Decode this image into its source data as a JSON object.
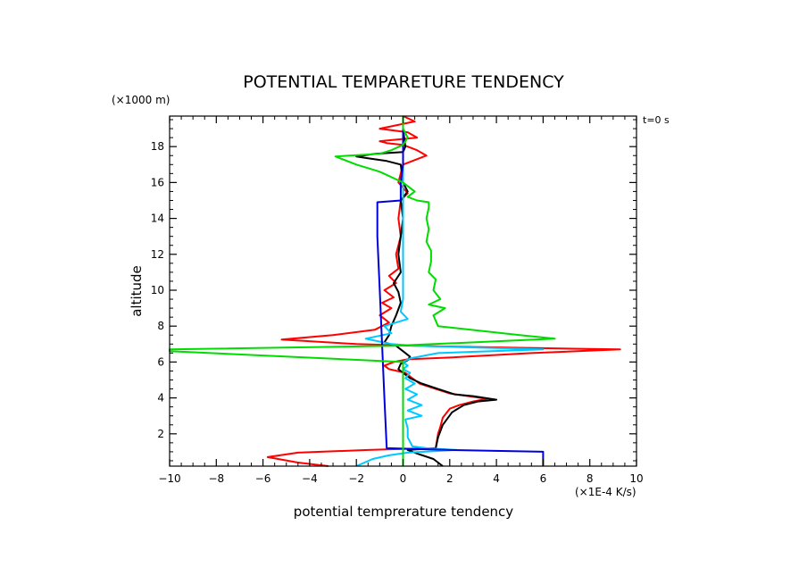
{
  "chart_data": {
    "type": "line",
    "title": "POTENTIAL TEMPARETURE TENDENCY",
    "xlabel": "potential temprerature tendency",
    "ylabel": "altitude",
    "x_unit": "(×1E-4 K/s)",
    "y_unit": "(×1000 m)",
    "time_label": "t=0 s",
    "xlim": [
      -10,
      10
    ],
    "ylim": [
      0.2,
      19.7
    ],
    "x_ticks": [
      -10,
      -8,
      -6,
      -4,
      -2,
      0,
      2,
      4,
      6,
      8,
      10
    ],
    "y_ticks": [
      2,
      4,
      6,
      8,
      10,
      12,
      14,
      16,
      18
    ],
    "grid": false,
    "legend": "none",
    "series": [
      {
        "color": "#ff0000",
        "points": [
          [
            -3.2,
            0.2
          ],
          [
            -4.5,
            0.4
          ],
          [
            -5.8,
            0.7
          ],
          [
            -4.5,
            0.95
          ],
          [
            -1.5,
            1.1
          ],
          [
            -0.2,
            1.15
          ],
          [
            1.4,
            1.2
          ],
          [
            1.5,
            2.0
          ],
          [
            1.6,
            2.4
          ],
          [
            1.7,
            2.9
          ],
          [
            2.0,
            3.4
          ],
          [
            2.4,
            3.6
          ],
          [
            3.0,
            3.8
          ],
          [
            3.6,
            3.95
          ],
          [
            2.8,
            4.1
          ],
          [
            2.0,
            4.25
          ],
          [
            1.4,
            4.5
          ],
          [
            0.7,
            4.8
          ],
          [
            0.3,
            5.2
          ],
          [
            0.1,
            5.4
          ],
          [
            -0.6,
            5.6
          ],
          [
            -0.8,
            5.8
          ],
          [
            -0.4,
            6.0
          ],
          [
            0.2,
            6.15
          ],
          [
            2.0,
            6.25
          ],
          [
            5.5,
            6.5
          ],
          [
            9.3,
            6.7
          ],
          [
            4.5,
            6.8
          ],
          [
            0.5,
            6.9
          ],
          [
            -2.0,
            7.0
          ],
          [
            -5.2,
            7.25
          ],
          [
            -3.0,
            7.5
          ],
          [
            -1.2,
            7.8
          ],
          [
            -0.6,
            8.2
          ],
          [
            -1.0,
            8.6
          ],
          [
            -0.5,
            9.0
          ],
          [
            -0.9,
            9.3
          ],
          [
            -0.4,
            9.6
          ],
          [
            -0.8,
            10.0
          ],
          [
            -0.3,
            10.4
          ],
          [
            -0.6,
            10.8
          ],
          [
            -0.2,
            11.2
          ],
          [
            -0.3,
            12.0
          ],
          [
            -0.1,
            13.0
          ],
          [
            -0.2,
            14.0
          ],
          [
            -0.1,
            15.0
          ],
          [
            0.2,
            15.4
          ],
          [
            0.0,
            15.7
          ],
          [
            -0.2,
            16.0
          ],
          [
            -0.1,
            16.5
          ],
          [
            0.0,
            17.0
          ],
          [
            1.0,
            17.5
          ],
          [
            0.6,
            17.8
          ],
          [
            0.0,
            18.1
          ],
          [
            -0.7,
            18.2
          ],
          [
            -1.0,
            18.3
          ],
          [
            0.6,
            18.5
          ],
          [
            0.2,
            18.8
          ],
          [
            -1.0,
            19.0
          ],
          [
            0.5,
            19.4
          ],
          [
            0.0,
            19.7
          ]
        ]
      },
      {
        "color": "#000000",
        "points": [
          [
            1.7,
            0.2
          ],
          [
            1.3,
            0.6
          ],
          [
            0.6,
            0.9
          ],
          [
            0.2,
            1.1
          ],
          [
            1.4,
            1.2
          ],
          [
            1.5,
            1.8
          ],
          [
            1.7,
            2.5
          ],
          [
            2.1,
            3.2
          ],
          [
            2.6,
            3.6
          ],
          [
            3.2,
            3.8
          ],
          [
            4.0,
            3.9
          ],
          [
            3.0,
            4.1
          ],
          [
            2.2,
            4.2
          ],
          [
            1.5,
            4.5
          ],
          [
            0.8,
            4.8
          ],
          [
            0.3,
            5.1
          ],
          [
            0.0,
            5.4
          ],
          [
            -0.2,
            5.6
          ],
          [
            -0.1,
            5.9
          ],
          [
            0.2,
            6.1
          ],
          [
            0.3,
            6.3
          ],
          [
            0.0,
            6.6
          ],
          [
            -0.3,
            6.9
          ],
          [
            -0.8,
            7.1
          ],
          [
            -0.6,
            7.5
          ],
          [
            -0.5,
            8.0
          ],
          [
            -0.3,
            8.6
          ],
          [
            -0.1,
            9.3
          ],
          [
            -0.2,
            9.9
          ],
          [
            -0.4,
            10.4
          ],
          [
            -0.1,
            11.0
          ],
          [
            -0.2,
            12.0
          ],
          [
            0.0,
            14.0
          ],
          [
            -0.1,
            15.0
          ],
          [
            0.2,
            15.5
          ],
          [
            0.0,
            16.0
          ],
          [
            -0.1,
            17.0
          ],
          [
            -0.7,
            17.2
          ],
          [
            -1.5,
            17.35
          ],
          [
            -2.0,
            17.45
          ],
          [
            -1.2,
            17.6
          ],
          [
            0.0,
            17.7
          ],
          [
            0.1,
            18.0
          ],
          [
            0.0,
            19.0
          ],
          [
            0.0,
            19.7
          ]
        ]
      },
      {
        "color": "#00c8ff",
        "points": [
          [
            -2.0,
            0.2
          ],
          [
            -1.3,
            0.6
          ],
          [
            -0.6,
            0.8
          ],
          [
            0.2,
            0.95
          ],
          [
            2.3,
            1.1
          ],
          [
            1.0,
            1.2
          ],
          [
            0.4,
            1.3
          ],
          [
            0.2,
            1.8
          ],
          [
            0.2,
            2.3
          ],
          [
            0.1,
            2.8
          ],
          [
            0.8,
            3.0
          ],
          [
            0.2,
            3.3
          ],
          [
            0.8,
            3.6
          ],
          [
            0.2,
            3.9
          ],
          [
            0.6,
            4.2
          ],
          [
            0.1,
            4.5
          ],
          [
            0.5,
            4.8
          ],
          [
            0.1,
            5.1
          ],
          [
            0.3,
            5.4
          ],
          [
            0.0,
            5.6
          ],
          [
            0.2,
            5.8
          ],
          [
            0.0,
            6.0
          ],
          [
            0.3,
            6.2
          ],
          [
            1.5,
            6.5
          ],
          [
            6.0,
            6.7
          ],
          [
            0.5,
            6.9
          ],
          [
            -0.5,
            7.0
          ],
          [
            -1.6,
            7.3
          ],
          [
            -0.5,
            7.6
          ],
          [
            -0.8,
            8.0
          ],
          [
            0.2,
            8.4
          ],
          [
            -0.1,
            8.8
          ],
          [
            0.0,
            9.5
          ],
          [
            0.0,
            19.7
          ]
        ]
      },
      {
        "color": "#0000dc",
        "points": [
          [
            6.0,
            0.2
          ],
          [
            6.0,
            1.0
          ],
          [
            2.0,
            1.1
          ],
          [
            -0.7,
            1.2
          ],
          [
            -0.8,
            4.0
          ],
          [
            -0.9,
            7.0
          ],
          [
            -1.0,
            10.0
          ],
          [
            -1.1,
            13.0
          ],
          [
            -1.1,
            14.9
          ],
          [
            -0.1,
            15.0
          ],
          [
            -0.1,
            16.0
          ],
          [
            0.0,
            17.0
          ],
          [
            0.0,
            19.7
          ]
        ]
      },
      {
        "color": "#00dc00",
        "points": [
          [
            0.0,
            0.2
          ],
          [
            0.0,
            3.0
          ],
          [
            0.0,
            6.0
          ],
          [
            -10.0,
            6.6
          ],
          [
            -10.0,
            6.7
          ],
          [
            -0.4,
            6.9
          ],
          [
            6.5,
            7.3
          ],
          [
            5.0,
            7.5
          ],
          [
            1.5,
            8.0
          ],
          [
            1.3,
            8.6
          ],
          [
            1.8,
            9.0
          ],
          [
            1.1,
            9.2
          ],
          [
            1.6,
            9.5
          ],
          [
            1.3,
            10.0
          ],
          [
            1.4,
            10.6
          ],
          [
            1.1,
            11.0
          ],
          [
            1.2,
            11.6
          ],
          [
            1.2,
            12.2
          ],
          [
            1.0,
            12.7
          ],
          [
            1.1,
            13.4
          ],
          [
            1.0,
            14.0
          ],
          [
            1.1,
            14.6
          ],
          [
            1.1,
            14.9
          ],
          [
            0.6,
            15.0
          ],
          [
            0.2,
            15.2
          ],
          [
            0.5,
            15.5
          ],
          [
            0.0,
            16.0
          ],
          [
            -1.0,
            16.6
          ],
          [
            -2.0,
            17.0
          ],
          [
            -2.9,
            17.45
          ],
          [
            -1.0,
            17.6
          ],
          [
            -0.5,
            17.8
          ],
          [
            0.0,
            18.1
          ],
          [
            0.2,
            18.5
          ],
          [
            0.0,
            19.0
          ],
          [
            0.0,
            19.7
          ]
        ]
      }
    ]
  }
}
